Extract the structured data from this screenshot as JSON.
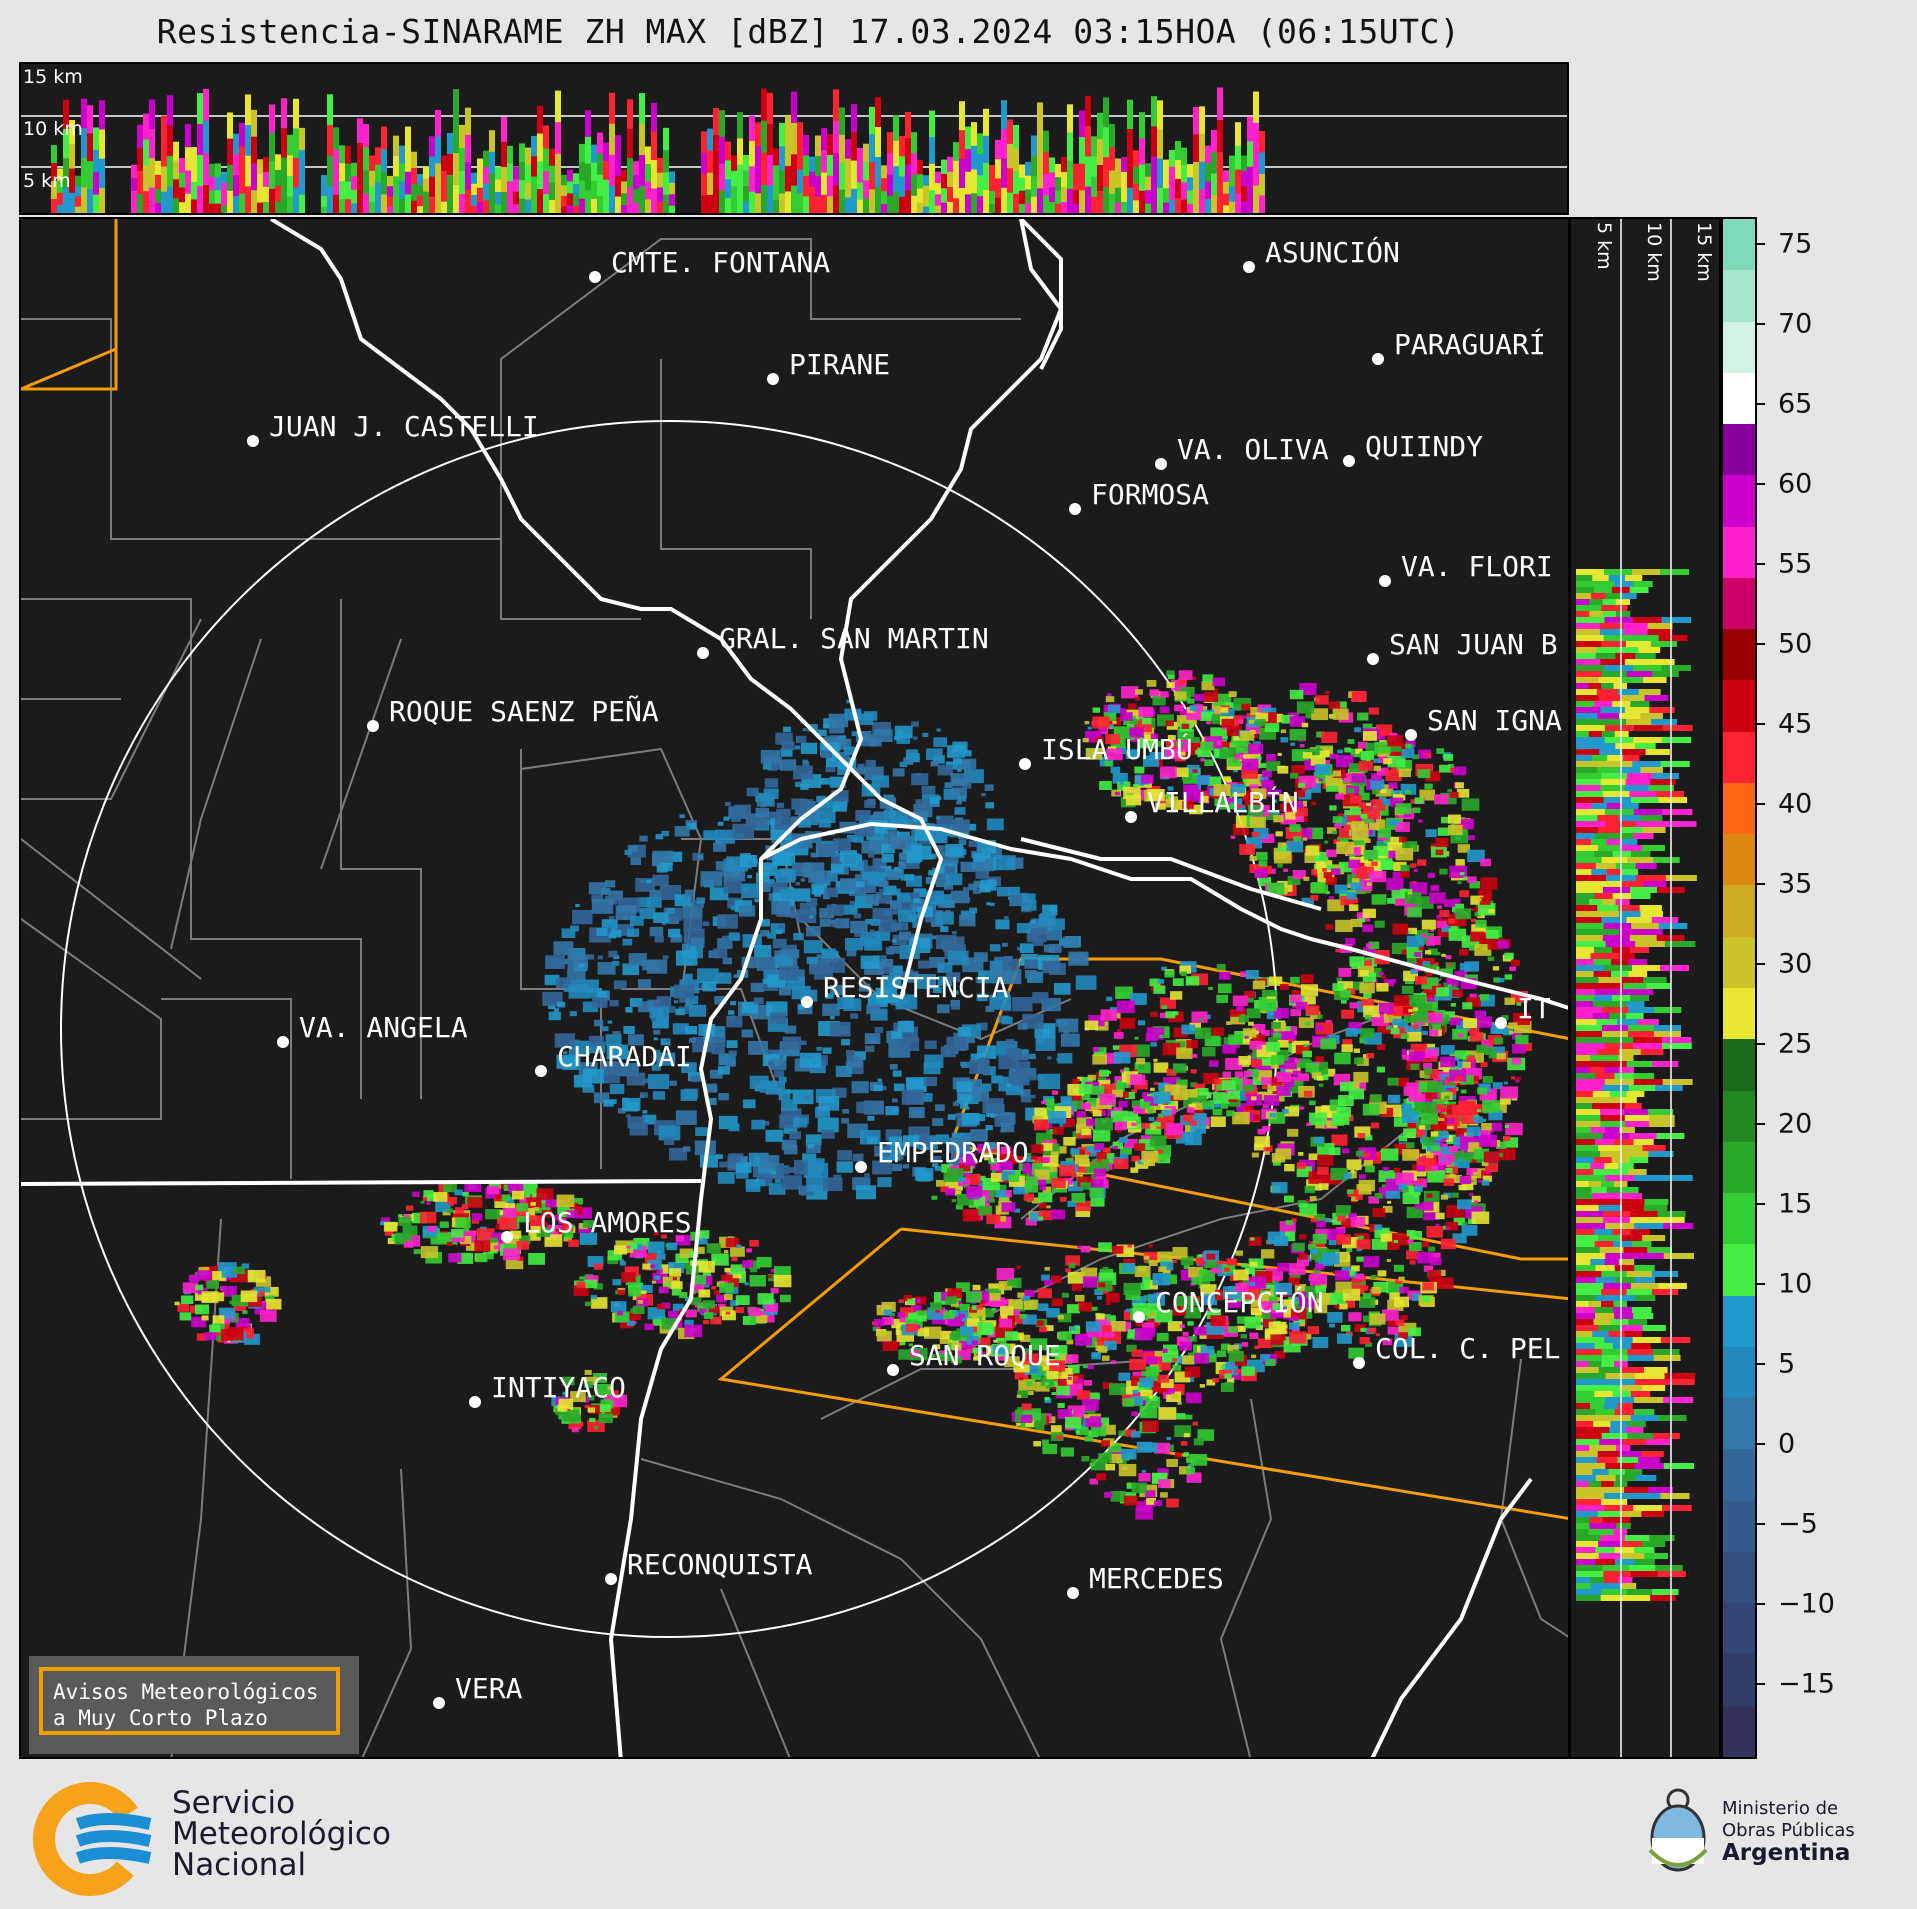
{
  "title": "Resistencia-SINARAME ZH MAX [dBZ] 17.03.2024 03:15HOA (06:15UTC)",
  "top_panel": {
    "alt_labels": [
      "15 km",
      "10 km",
      "5 km"
    ]
  },
  "side_panel": {
    "alt_labels": [
      "5 km",
      "10 km",
      "15 km"
    ]
  },
  "colorbar": {
    "ticks": [
      "75",
      "70",
      "65",
      "60",
      "55",
      "50",
      "45",
      "40",
      "35",
      "30",
      "25",
      "20",
      "15",
      "10",
      "5",
      "0",
      "−5",
      "−10",
      "−15"
    ],
    "range": [
      -20,
      77
    ],
    "colors": [
      "#80d9b8",
      "#a8e6cb",
      "#d2f2e4",
      "#ffffff",
      "#8800a0",
      "#cc00cc",
      "#ff22cc",
      "#cc0066",
      "#990000",
      "#cc0011",
      "#ff2233",
      "#ff6611",
      "#dd8811",
      "#ccaa22",
      "#c8c42a",
      "#e6e633",
      "#1b6b1b",
      "#228822",
      "#2aa82a",
      "#33cc33",
      "#44ee44",
      "#2299cc",
      "#2288bb",
      "#3377aa",
      "#33679a",
      "#335b8c",
      "#334f80",
      "#334574",
      "#333b68",
      "#33325c"
    ]
  },
  "map": {
    "cities": [
      {
        "name": "CMTE. FONTANA"
      },
      {
        "name": "ASUNCIÓN"
      },
      {
        "name": "PARAGUARÍ"
      },
      {
        "name": "PIRANE"
      },
      {
        "name": "JUAN J. CASTELLI"
      },
      {
        "name": "VA. OLIVA"
      },
      {
        "name": "QUIINDY"
      },
      {
        "name": "FORMOSA"
      },
      {
        "name": "VA. FLORI"
      },
      {
        "name": "GRAL. SAN MARTIN"
      },
      {
        "name": "SAN JUAN B"
      },
      {
        "name": "ROQUE SAENZ PEÑA"
      },
      {
        "name": "SAN IGNA"
      },
      {
        "name": "ISLA UMBÚ"
      },
      {
        "name": "VILLALBÍN"
      },
      {
        "name": "RESISTENCIA"
      },
      {
        "name": "VA. ANGELA"
      },
      {
        "name": "CHARADAI"
      },
      {
        "name": "IT"
      },
      {
        "name": "EMPEDRADO"
      },
      {
        "name": "LOS AMORES"
      },
      {
        "name": "CONCEPCIÓN"
      },
      {
        "name": "SAN ROQUE"
      },
      {
        "name": "COL. C. PEL"
      },
      {
        "name": "INTIYACO"
      },
      {
        "name": "RECONQUISTA"
      },
      {
        "name": "MERCEDES"
      },
      {
        "name": "VERA"
      }
    ]
  },
  "legend": {
    "line1": "Avisos Meteorológicos",
    "line2": "a Muy Corto Plazo"
  },
  "logos": {
    "smn": {
      "line1": "Servicio",
      "line2": "Meteorológico",
      "line3": "Nacional",
      "colors": [
        "#f6a31b",
        "#1b8fd6"
      ]
    },
    "ministerio": {
      "line1": "Ministerio de",
      "line2": "Obras Públicas",
      "line3": "Argentina"
    }
  }
}
